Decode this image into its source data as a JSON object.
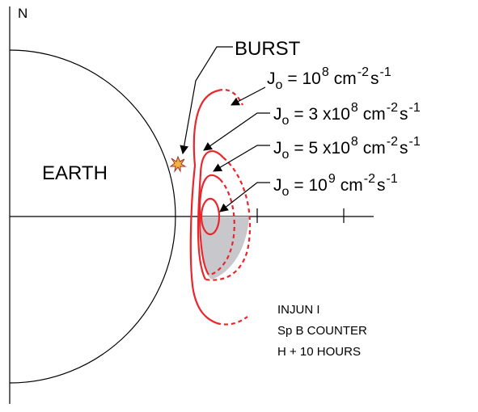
{
  "axis_label": "N",
  "earth_label": "EARTH",
  "burst_label": "BURST",
  "contours": [
    {
      "symbol": "J",
      "sub": "o",
      "eq": "= 10",
      "exp": "8",
      "unit1": "cm",
      "unit1_exp": "-2",
      "unit2": "s",
      "unit2_exp": "-1"
    },
    {
      "symbol": "J",
      "sub": "o",
      "eq": "=  3 x10",
      "exp": "8",
      "unit1": "cm",
      "unit1_exp": "-2",
      "unit2": "s",
      "unit2_exp": "-1"
    },
    {
      "symbol": "J",
      "sub": "o",
      "eq": "=  5 x10",
      "exp": "8",
      "unit1": "cm",
      "unit1_exp": "-2",
      "unit2": "s",
      "unit2_exp": "-1"
    },
    {
      "symbol": "J",
      "sub": "o",
      "eq": "= 10",
      "exp": "9",
      "unit1": "cm",
      "unit1_exp": "-2",
      "unit2": "s",
      "unit2_exp": "-1"
    }
  ],
  "caption": [
    "INJUN I",
    "Sp B COUNTER",
    "H + 10 HOURS"
  ]
}
